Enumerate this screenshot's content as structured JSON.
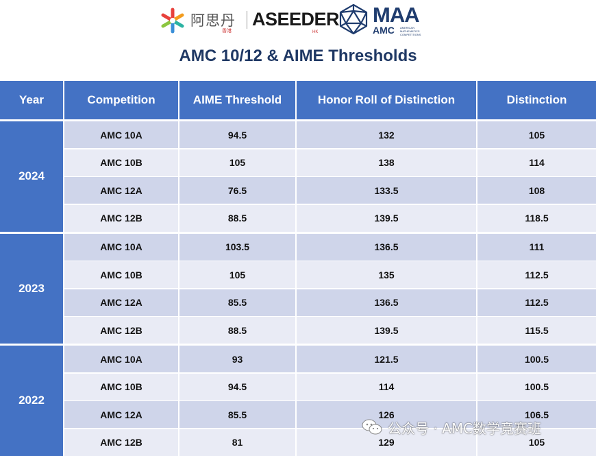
{
  "logos": {
    "aseeder_cn": "阿思丹",
    "aseeder_cn_sub": "香港",
    "aseeder_brand": "ASEEDER",
    "aseeder_brand_sub": "HK",
    "maa_word": "MAA",
    "amc_word": "AMC",
    "amc_small": "AMERICAN MATHEMATICS COMPETITIONS"
  },
  "title": "AMC 10/12 & AIME Thresholds",
  "colors": {
    "header": "#4472c4",
    "title": "#1f3864",
    "row_a": "#cfd5ea",
    "row_b": "#e9ebf5"
  },
  "table": {
    "headers": [
      "Year",
      "Competition",
      "AIME Threshold",
      "Honor Roll of Distinction",
      "Distinction"
    ],
    "groups": [
      {
        "year": "2024",
        "rows": [
          [
            "AMC 10A",
            "94.5",
            "132",
            "105"
          ],
          [
            "AMC 10B",
            "105",
            "138",
            "114"
          ],
          [
            "AMC 12A",
            "76.5",
            "133.5",
            "108"
          ],
          [
            "AMC 12B",
            "88.5",
            "139.5",
            "118.5"
          ]
        ]
      },
      {
        "year": "2023",
        "rows": [
          [
            "AMC 10A",
            "103.5",
            "136.5",
            "111"
          ],
          [
            "AMC 10B",
            "105",
            "135",
            "112.5"
          ],
          [
            "AMC 12A",
            "85.5",
            "136.5",
            "112.5"
          ],
          [
            "AMC 12B",
            "88.5",
            "139.5",
            "115.5"
          ]
        ]
      },
      {
        "year": "2022",
        "rows": [
          [
            "AMC 10A",
            "93",
            "121.5",
            "100.5"
          ],
          [
            "AMC 10B",
            "94.5",
            "114",
            "100.5"
          ],
          [
            "AMC 12A",
            "85.5",
            "126",
            "106.5"
          ],
          [
            "AMC 12B",
            "81",
            "129",
            "105"
          ]
        ]
      }
    ]
  },
  "watermark": "公众号 · AMC数学竞赛班",
  "icons": {
    "aseeder": "aseeder-star-icon",
    "maa": "maa-icosahedron-icon",
    "wechat": "wechat-icon"
  }
}
